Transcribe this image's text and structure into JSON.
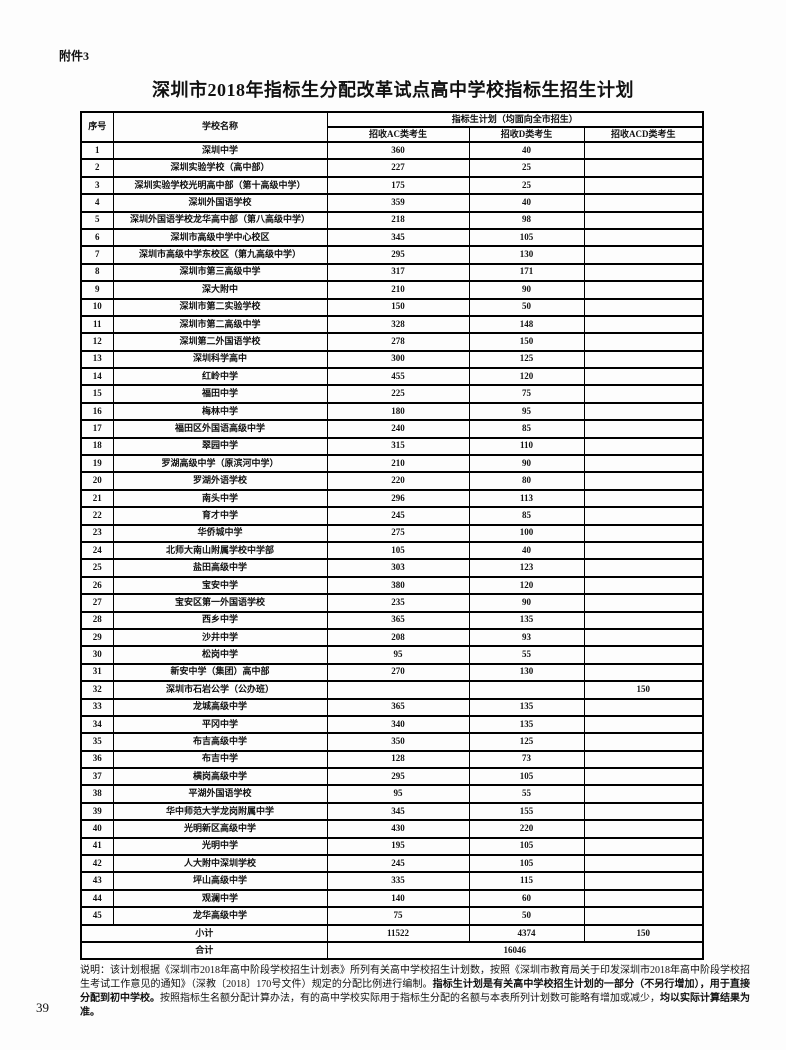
{
  "page": {
    "attachment_label": "附件3",
    "title": "深圳市2018年指标生分配改革试点高中学校指标生招生计划",
    "page_number": "39"
  },
  "table": {
    "headers": {
      "col_index": "序号",
      "col_school": "学校名称",
      "col_plan_group": "指标生计划（均面向全市招生）",
      "col_ac": "招收AC类考生",
      "col_d": "招收D类考生",
      "col_acd": "招收ACD类考生"
    },
    "rows": [
      {
        "no": "1",
        "school": "深圳中学",
        "ac": "360",
        "d": "40",
        "acd": ""
      },
      {
        "no": "2",
        "school": "深圳实验学校（高中部）",
        "ac": "227",
        "d": "25",
        "acd": ""
      },
      {
        "no": "3",
        "school": "深圳实验学校光明高中部（第十高级中学）",
        "ac": "175",
        "d": "25",
        "acd": ""
      },
      {
        "no": "4",
        "school": "深圳外国语学校",
        "ac": "359",
        "d": "40",
        "acd": ""
      },
      {
        "no": "5",
        "school": "深圳外国语学校龙华高中部（第八高级中学）",
        "ac": "218",
        "d": "98",
        "acd": ""
      },
      {
        "no": "6",
        "school": "深圳市高级中学中心校区",
        "ac": "345",
        "d": "105",
        "acd": ""
      },
      {
        "no": "7",
        "school": "深圳市高级中学东校区（第九高级中学）",
        "ac": "295",
        "d": "130",
        "acd": ""
      },
      {
        "no": "8",
        "school": "深圳市第三高级中学",
        "ac": "317",
        "d": "171",
        "acd": ""
      },
      {
        "no": "9",
        "school": "深大附中",
        "ac": "210",
        "d": "90",
        "acd": ""
      },
      {
        "no": "10",
        "school": "深圳市第二实验学校",
        "ac": "150",
        "d": "50",
        "acd": ""
      },
      {
        "no": "11",
        "school": "深圳市第二高级中学",
        "ac": "328",
        "d": "148",
        "acd": ""
      },
      {
        "no": "12",
        "school": "深圳第二外国语学校",
        "ac": "278",
        "d": "150",
        "acd": ""
      },
      {
        "no": "13",
        "school": "深圳科学高中",
        "ac": "300",
        "d": "125",
        "acd": ""
      },
      {
        "no": "14",
        "school": "红岭中学",
        "ac": "455",
        "d": "120",
        "acd": ""
      },
      {
        "no": "15",
        "school": "福田中学",
        "ac": "225",
        "d": "75",
        "acd": ""
      },
      {
        "no": "16",
        "school": "梅林中学",
        "ac": "180",
        "d": "95",
        "acd": ""
      },
      {
        "no": "17",
        "school": "福田区外国语高级中学",
        "ac": "240",
        "d": "85",
        "acd": ""
      },
      {
        "no": "18",
        "school": "翠园中学",
        "ac": "315",
        "d": "110",
        "acd": ""
      },
      {
        "no": "19",
        "school": "罗湖高级中学（原滨河中学）",
        "ac": "210",
        "d": "90",
        "acd": ""
      },
      {
        "no": "20",
        "school": "罗湖外语学校",
        "ac": "220",
        "d": "80",
        "acd": ""
      },
      {
        "no": "21",
        "school": "南头中学",
        "ac": "296",
        "d": "113",
        "acd": ""
      },
      {
        "no": "22",
        "school": "育才中学",
        "ac": "245",
        "d": "85",
        "acd": ""
      },
      {
        "no": "23",
        "school": "华侨城中学",
        "ac": "275",
        "d": "100",
        "acd": ""
      },
      {
        "no": "24",
        "school": "北师大南山附属学校中学部",
        "ac": "105",
        "d": "40",
        "acd": ""
      },
      {
        "no": "25",
        "school": "盐田高级中学",
        "ac": "303",
        "d": "123",
        "acd": ""
      },
      {
        "no": "26",
        "school": "宝安中学",
        "ac": "380",
        "d": "120",
        "acd": ""
      },
      {
        "no": "27",
        "school": "宝安区第一外国语学校",
        "ac": "235",
        "d": "90",
        "acd": ""
      },
      {
        "no": "28",
        "school": "西乡中学",
        "ac": "365",
        "d": "135",
        "acd": ""
      },
      {
        "no": "29",
        "school": "沙井中学",
        "ac": "208",
        "d": "93",
        "acd": ""
      },
      {
        "no": "30",
        "school": "松岗中学",
        "ac": "95",
        "d": "55",
        "acd": ""
      },
      {
        "no": "31",
        "school": "新安中学（集团）高中部",
        "ac": "270",
        "d": "130",
        "acd": ""
      },
      {
        "no": "32",
        "school": "深圳市石岩公学（公办班）",
        "ac": "",
        "d": "",
        "acd": "150"
      },
      {
        "no": "33",
        "school": "龙城高级中学",
        "ac": "365",
        "d": "135",
        "acd": ""
      },
      {
        "no": "34",
        "school": "平冈中学",
        "ac": "340",
        "d": "135",
        "acd": ""
      },
      {
        "no": "35",
        "school": "布吉高级中学",
        "ac": "350",
        "d": "125",
        "acd": ""
      },
      {
        "no": "36",
        "school": "布吉中学",
        "ac": "128",
        "d": "73",
        "acd": ""
      },
      {
        "no": "37",
        "school": "横岗高级中学",
        "ac": "295",
        "d": "105",
        "acd": ""
      },
      {
        "no": "38",
        "school": "平湖外国语学校",
        "ac": "95",
        "d": "55",
        "acd": ""
      },
      {
        "no": "39",
        "school": "华中师范大学龙岗附属中学",
        "ac": "345",
        "d": "155",
        "acd": ""
      },
      {
        "no": "40",
        "school": "光明新区高级中学",
        "ac": "430",
        "d": "220",
        "acd": ""
      },
      {
        "no": "41",
        "school": "光明中学",
        "ac": "195",
        "d": "105",
        "acd": ""
      },
      {
        "no": "42",
        "school": "人大附中深圳学校",
        "ac": "245",
        "d": "105",
        "acd": ""
      },
      {
        "no": "43",
        "school": "坪山高级中学",
        "ac": "335",
        "d": "115",
        "acd": ""
      },
      {
        "no": "44",
        "school": "观澜中学",
        "ac": "140",
        "d": "60",
        "acd": ""
      },
      {
        "no": "45",
        "school": "龙华高级中学",
        "ac": "75",
        "d": "50",
        "acd": ""
      }
    ],
    "subtotal": {
      "label": "小计",
      "ac": "11522",
      "d": "4374",
      "acd": "150"
    },
    "total": {
      "label": "合计",
      "value": "16046"
    }
  },
  "footnote": {
    "seg1": "说明：该计划根据《深圳市2018年高中阶段学校招生计划表》所列有关高中学校招生计划数，按照《深圳市教育局关于印发深圳市2018年高中阶段学校招生考试工作意见的通知》（深教〔2018〕170号文件）规定的分配比例进行编制。",
    "seg2": "指标生计划是有关高中学校招生计划的一部分（不另行增加），用于直接分配到初中学校。",
    "seg3": "按照指标生名额分配计算办法，有的高中学校实际用于指标生分配的名额与本表所列计划数可能略有增加或减少，",
    "seg4": "均以实际计算结果为准。"
  }
}
